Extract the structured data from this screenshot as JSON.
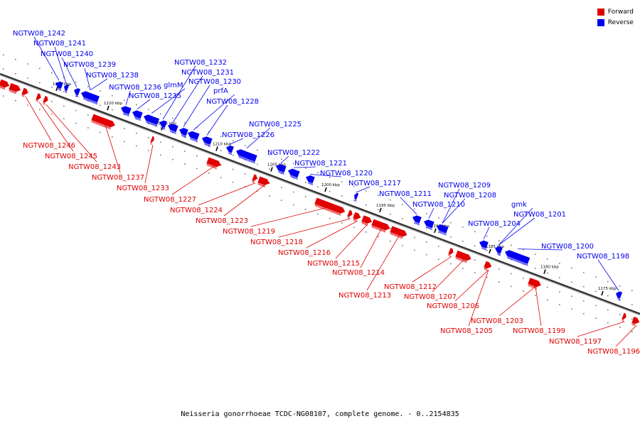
{
  "caption": "Neisseria gonorrhoeae TCDC-NG08107, complete genome. - 0..2154835",
  "colors": {
    "forward": "#e00000",
    "reverse": "#0000ee",
    "backbone": "#777777"
  },
  "legend": [
    {
      "label": "Forward",
      "color": "#e00000"
    },
    {
      "label": "Reverse",
      "color": "#0000ee"
    }
  ],
  "scale_ticks": [
    "1225 kbp",
    "1220 kbp",
    "1215 kbp",
    "1210 kbp",
    "1205 kbp",
    "1200 kbp",
    "1195 kbp",
    "1190 kbp",
    "1185 kbp",
    "1180 kbp",
    "1175 kbp"
  ],
  "reverse_labels": [
    "NGTW08_1242",
    "NGTW08_1241",
    "NGTW08_1240",
    "NGTW08_1239",
    "NGTW08_1238",
    "NGTW08_1236",
    "NGTW08_1235",
    "glmM",
    "NGTW08_1232",
    "NGTW08_1231",
    "NGTW08_1230",
    "prfA",
    "NGTW08_1228",
    "NGTW08_1226",
    "NGTW08_1225",
    "NGTW08_1222",
    "NGTW08_1221",
    "NGTW08_1220",
    "NGTW08_1217",
    "NGTW08_1211",
    "NGTW08_1210",
    "NGTW08_1209",
    "NGTW08_1208",
    "gmk",
    "NGTW08_1201",
    "NGTW08_1204",
    "NGTW08_1200",
    "NGTW08_1198"
  ],
  "forward_labels": [
    "NGTW08_1246",
    "NGTW08_1245",
    "NGTW08_1243",
    "NGTW08_1237",
    "NGTW08_1233",
    "NGTW08_1227",
    "NGTW08_1224",
    "NGTW08_1223",
    "NGTW08_1219",
    "NGTW08_1218",
    "NGTW08_1216",
    "NGTW08_1215",
    "NGTW08_1214",
    "NGTW08_1213",
    "NGTW08_1212",
    "NGTW08_1207",
    "NGTW08_1206",
    "NGTW08_1205",
    "NGTW08_1203",
    "NGTW08_1199",
    "NGTW08_1197",
    "NGTW08_1196"
  ]
}
